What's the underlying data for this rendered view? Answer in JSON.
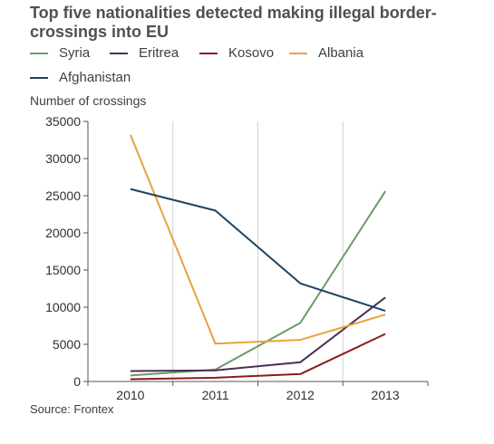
{
  "title": "Top five nationalities detected making illegal border-crossings into EU",
  "source": "Source: Frontex",
  "chart_data": {
    "type": "line",
    "title": "Top five nationalities detected making illegal border-crossings into EU",
    "ylabel": "Number of crossings",
    "xlabel": "",
    "x": [
      "2010",
      "2011",
      "2012",
      "2013"
    ],
    "ylim": [
      0,
      35000
    ],
    "yticks": [
      "0",
      "5000",
      "10000",
      "15000",
      "20000",
      "25000",
      "30000",
      "35000"
    ],
    "grid": "vertical",
    "legend": "top",
    "series": [
      {
        "name": "Syria",
        "color": "#6a9b68",
        "values": [
          800,
          1600,
          7900,
          25600
        ]
      },
      {
        "name": "Eritrea",
        "color": "#4a2f55",
        "values": [
          1400,
          1500,
          2600,
          11300
        ]
      },
      {
        "name": "Kosovo",
        "color": "#8b1d1d",
        "values": [
          300,
          500,
          1000,
          6400
        ]
      },
      {
        "name": "Albania",
        "color": "#e8a33a",
        "values": [
          33200,
          5100,
          5600,
          9000
        ]
      },
      {
        "name": "Afghanistan",
        "color": "#1d4460",
        "values": [
          25900,
          23000,
          13200,
          9500
        ]
      }
    ]
  }
}
